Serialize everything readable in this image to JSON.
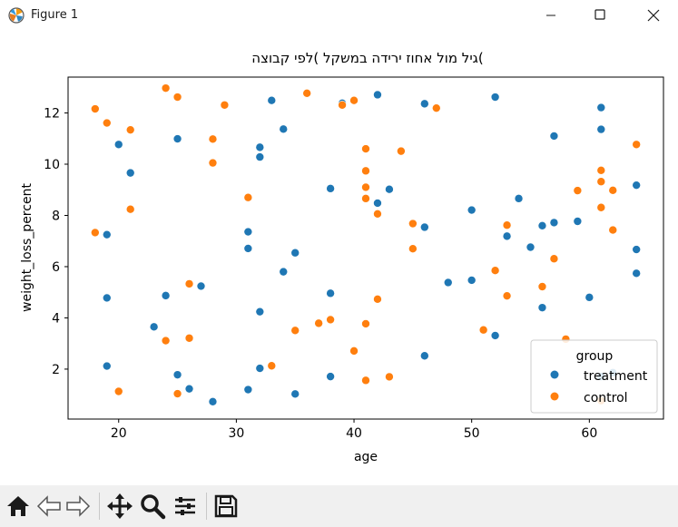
{
  "window": {
    "title": "Figure 1",
    "icons": [
      "matplotlib-logo-icon",
      "minimize-icon",
      "maximize-icon",
      "close-icon"
    ]
  },
  "toolbar": {
    "icons": [
      "home-icon",
      "back-arrow-icon",
      "forward-arrow-icon",
      "pan-move-icon",
      "zoom-magnifier-icon",
      "subplots-config-icon",
      "save-disk-icon"
    ]
  },
  "chart_data": {
    "type": "scatter",
    "title": "גיל מול אחוז ירידה במשקל )לפי קבוצה(",
    "xlabel": "age",
    "ylabel": "weight_loss_percent",
    "xlim": [
      15.7,
      66.3
    ],
    "ylim": [
      0.05,
      13.4
    ],
    "xticks": [
      20,
      30,
      40,
      50,
      60
    ],
    "yticks": [
      2,
      4,
      6,
      8,
      10,
      12
    ],
    "grid": false,
    "legend": {
      "title": "group",
      "position": "lower right"
    },
    "series": [
      {
        "name": "treatment",
        "color": "#1f77b4",
        "points": [
          [
            19,
            7.25
          ],
          [
            19,
            4.78
          ],
          [
            19,
            2.12
          ],
          [
            20,
            10.77
          ],
          [
            21,
            9.66
          ],
          [
            23,
            3.65
          ],
          [
            24,
            4.87
          ],
          [
            25,
            10.99
          ],
          [
            25,
            1.78
          ],
          [
            26,
            1.23
          ],
          [
            27,
            5.24
          ],
          [
            28,
            0.73
          ],
          [
            31,
            7.36
          ],
          [
            31,
            6.71
          ],
          [
            31,
            1.2
          ],
          [
            32,
            10.66
          ],
          [
            32,
            10.28
          ],
          [
            32,
            4.24
          ],
          [
            32,
            2.03
          ],
          [
            33,
            12.49
          ],
          [
            34,
            11.37
          ],
          [
            34,
            5.8
          ],
          [
            35,
            6.54
          ],
          [
            35,
            1.03
          ],
          [
            38,
            9.05
          ],
          [
            38,
            4.96
          ],
          [
            38,
            1.71
          ],
          [
            39,
            12.38
          ],
          [
            42,
            12.71
          ],
          [
            42,
            8.48
          ],
          [
            43,
            9.02
          ],
          [
            46,
            12.36
          ],
          [
            46,
            7.54
          ],
          [
            46,
            2.52
          ],
          [
            48,
            5.38
          ],
          [
            50,
            8.21
          ],
          [
            50,
            5.47
          ],
          [
            52,
            12.62
          ],
          [
            52,
            3.31
          ],
          [
            53,
            7.19
          ],
          [
            54,
            8.66
          ],
          [
            55,
            6.76
          ],
          [
            56,
            7.6
          ],
          [
            56,
            4.4
          ],
          [
            57,
            11.1
          ],
          [
            57,
            7.72
          ],
          [
            59,
            7.77
          ],
          [
            60,
            4.8
          ],
          [
            61,
            12.21
          ],
          [
            61,
            11.36
          ],
          [
            61,
            1.71
          ],
          [
            62,
            1.86
          ],
          [
            64,
            9.18
          ],
          [
            64,
            6.67
          ],
          [
            64,
            5.74
          ]
        ]
      },
      {
        "name": "control",
        "color": "#ff7f0e",
        "points": [
          [
            18,
            12.16
          ],
          [
            18,
            7.33
          ],
          [
            19,
            11.61
          ],
          [
            20,
            1.13
          ],
          [
            21,
            11.34
          ],
          [
            21,
            8.24
          ],
          [
            24,
            12.97
          ],
          [
            24,
            3.11
          ],
          [
            25,
            12.62
          ],
          [
            25,
            1.04
          ],
          [
            26,
            5.33
          ],
          [
            26,
            3.21
          ],
          [
            28,
            10.98
          ],
          [
            28,
            10.05
          ],
          [
            29,
            12.31
          ],
          [
            31,
            8.7
          ],
          [
            33,
            2.13
          ],
          [
            35,
            3.51
          ],
          [
            36,
            12.77
          ],
          [
            37,
            3.79
          ],
          [
            38,
            3.93
          ],
          [
            39,
            12.31
          ],
          [
            40,
            12.49
          ],
          [
            40,
            2.71
          ],
          [
            41,
            10.6
          ],
          [
            41,
            9.74
          ],
          [
            41,
            9.1
          ],
          [
            41,
            8.66
          ],
          [
            41,
            3.77
          ],
          [
            41,
            1.56
          ],
          [
            42,
            8.06
          ],
          [
            42,
            4.73
          ],
          [
            43,
            1.7
          ],
          [
            44,
            10.51
          ],
          [
            45,
            7.68
          ],
          [
            45,
            6.7
          ],
          [
            47,
            12.19
          ],
          [
            51,
            3.53
          ],
          [
            52,
            5.85
          ],
          [
            53,
            7.62
          ],
          [
            53,
            4.86
          ],
          [
            56,
            5.22
          ],
          [
            57,
            6.31
          ],
          [
            58,
            3.17
          ],
          [
            59,
            8.97
          ],
          [
            61,
            9.76
          ],
          [
            61,
            9.32
          ],
          [
            61,
            8.31
          ],
          [
            61,
            0.77
          ],
          [
            62,
            8.98
          ],
          [
            62,
            7.43
          ],
          [
            64,
            10.77
          ]
        ]
      }
    ]
  }
}
